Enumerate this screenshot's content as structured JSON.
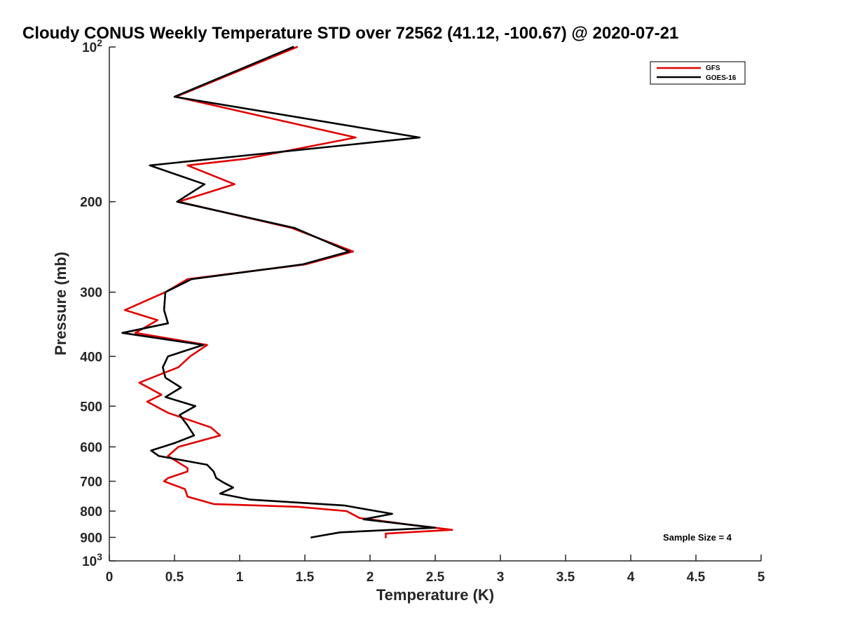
{
  "chart_data": {
    "type": "line",
    "title": "Cloudy CONUS Weekly Temperature STD over 72562 (41.12, -100.67) @ 2020-07-21",
    "xlabel": "Temperature (K)",
    "ylabel": "Pressure (mb)",
    "xlim": [
      0,
      5
    ],
    "ylim": [
      100,
      1000
    ],
    "y_scale": "log",
    "y_reversed": true,
    "x_ticks": [
      0,
      0.5,
      1,
      1.5,
      2,
      2.5,
      3,
      3.5,
      4,
      4.5,
      5
    ],
    "x_tick_labels": [
      "0",
      "0.5",
      "1",
      "1.5",
      "2",
      "2.5",
      "3",
      "3.5",
      "4",
      "4.5",
      "5"
    ],
    "y_ticks": [
      200,
      300,
      400,
      500,
      600,
      700,
      800,
      900
    ],
    "y_tick_labels": [
      "200",
      "300",
      "400",
      "500",
      "600",
      "700",
      "800",
      "900"
    ],
    "y_decade_ticks": [
      {
        "value": 100,
        "base": "10",
        "exp": "2"
      },
      {
        "value": 1000,
        "base": "10",
        "exp": "3"
      }
    ],
    "grid": false,
    "legend_position": "top-right",
    "annotation": "Sample Size = 4",
    "series": [
      {
        "name": "GFS",
        "color": "#e00000",
        "points": [
          {
            "x": 1.44,
            "y": 100
          },
          {
            "x": 0.51,
            "y": 125
          },
          {
            "x": 1.89,
            "y": 150
          },
          {
            "x": 1.05,
            "y": 165
          },
          {
            "x": 0.6,
            "y": 170
          },
          {
            "x": 0.96,
            "y": 185
          },
          {
            "x": 0.53,
            "y": 200
          },
          {
            "x": 1.4,
            "y": 225
          },
          {
            "x": 1.87,
            "y": 250
          },
          {
            "x": 1.5,
            "y": 265
          },
          {
            "x": 0.6,
            "y": 283
          },
          {
            "x": 0.43,
            "y": 300
          },
          {
            "x": 0.12,
            "y": 325
          },
          {
            "x": 0.37,
            "y": 340
          },
          {
            "x": 0.2,
            "y": 360
          },
          {
            "x": 0.75,
            "y": 380
          },
          {
            "x": 0.62,
            "y": 400
          },
          {
            "x": 0.53,
            "y": 420
          },
          {
            "x": 0.23,
            "y": 450
          },
          {
            "x": 0.4,
            "y": 475
          },
          {
            "x": 0.29,
            "y": 490
          },
          {
            "x": 0.45,
            "y": 515
          },
          {
            "x": 0.78,
            "y": 550
          },
          {
            "x": 0.85,
            "y": 570
          },
          {
            "x": 0.53,
            "y": 600
          },
          {
            "x": 0.45,
            "y": 625
          },
          {
            "x": 0.6,
            "y": 660
          },
          {
            "x": 0.6,
            "y": 670
          },
          {
            "x": 0.45,
            "y": 690
          },
          {
            "x": 0.42,
            "y": 700
          },
          {
            "x": 0.58,
            "y": 725
          },
          {
            "x": 0.6,
            "y": 750
          },
          {
            "x": 0.8,
            "y": 775
          },
          {
            "x": 1.45,
            "y": 785
          },
          {
            "x": 1.82,
            "y": 800
          },
          {
            "x": 1.92,
            "y": 825
          },
          {
            "x": 2.3,
            "y": 850
          },
          {
            "x": 2.63,
            "y": 870
          },
          {
            "x": 2.12,
            "y": 885
          },
          {
            "x": 2.12,
            "y": 900
          }
        ]
      },
      {
        "name": "GOES-16",
        "color": "#000000",
        "points": [
          {
            "x": 1.41,
            "y": 100
          },
          {
            "x": 0.5,
            "y": 125
          },
          {
            "x": 2.38,
            "y": 150
          },
          {
            "x": 0.31,
            "y": 170
          },
          {
            "x": 0.73,
            "y": 185
          },
          {
            "x": 0.52,
            "y": 200
          },
          {
            "x": 1.42,
            "y": 225
          },
          {
            "x": 1.84,
            "y": 250
          },
          {
            "x": 1.48,
            "y": 265
          },
          {
            "x": 0.63,
            "y": 283
          },
          {
            "x": 0.43,
            "y": 300
          },
          {
            "x": 0.42,
            "y": 325
          },
          {
            "x": 0.45,
            "y": 345
          },
          {
            "x": 0.1,
            "y": 360
          },
          {
            "x": 0.72,
            "y": 380
          },
          {
            "x": 0.45,
            "y": 400
          },
          {
            "x": 0.41,
            "y": 420
          },
          {
            "x": 0.43,
            "y": 440
          },
          {
            "x": 0.55,
            "y": 460
          },
          {
            "x": 0.43,
            "y": 480
          },
          {
            "x": 0.66,
            "y": 500
          },
          {
            "x": 0.54,
            "y": 520
          },
          {
            "x": 0.6,
            "y": 545
          },
          {
            "x": 0.65,
            "y": 570
          },
          {
            "x": 0.5,
            "y": 590
          },
          {
            "x": 0.32,
            "y": 610
          },
          {
            "x": 0.38,
            "y": 625
          },
          {
            "x": 0.75,
            "y": 650
          },
          {
            "x": 0.8,
            "y": 670
          },
          {
            "x": 0.82,
            "y": 690
          },
          {
            "x": 0.88,
            "y": 705
          },
          {
            "x": 0.95,
            "y": 720
          },
          {
            "x": 0.85,
            "y": 740
          },
          {
            "x": 1.08,
            "y": 760
          },
          {
            "x": 1.8,
            "y": 780
          },
          {
            "x": 2.17,
            "y": 810
          },
          {
            "x": 1.95,
            "y": 830
          },
          {
            "x": 2.5,
            "y": 862
          },
          {
            "x": 1.77,
            "y": 880
          },
          {
            "x": 1.55,
            "y": 900
          }
        ]
      }
    ]
  }
}
